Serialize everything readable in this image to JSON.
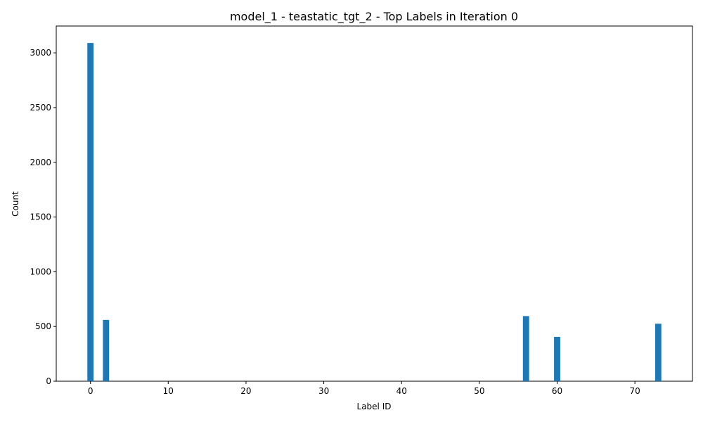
{
  "chart_data": {
    "type": "bar",
    "title": "model_1 - teastatic_tgt_2 - Top Labels in Iteration 0",
    "xlabel": "Label ID",
    "ylabel": "Count",
    "x": [
      0,
      2,
      56,
      60,
      73
    ],
    "values": [
      3090,
      560,
      595,
      405,
      525
    ],
    "xlim": [
      -4.4,
      77.4
    ],
    "ylim": [
      0,
      3245
    ],
    "xticks": [
      0,
      10,
      20,
      30,
      40,
      50,
      60,
      70
    ],
    "yticks": [
      0,
      500,
      1000,
      1500,
      2000,
      2500,
      3000
    ],
    "bar_width": 0.8,
    "grid": false,
    "legend": "none",
    "bar_color": "#1f77b4"
  }
}
